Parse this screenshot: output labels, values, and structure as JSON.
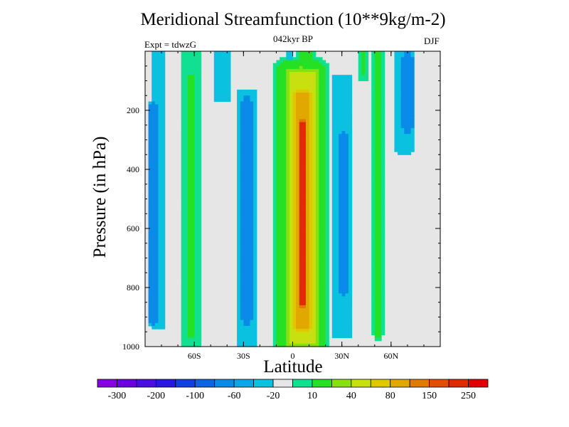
{
  "chart_data": {
    "type": "heatmap",
    "title": "Meridional Streamfunction (10**9kg/m-2)",
    "subtitle": "042kyr BP",
    "left_label": "Expt = tdwzG",
    "right_label": "DJF",
    "xlabel": "Latitude",
    "ylabel": "Pressure (in hPa)",
    "xlim": [
      -90,
      90
    ],
    "ylim": [
      0,
      1000
    ],
    "y_inverted": true,
    "x_ticks": [
      {
        "value": -60,
        "label": "60S"
      },
      {
        "value": -30,
        "label": "30S"
      },
      {
        "value": 0,
        "label": "0"
      },
      {
        "value": 30,
        "label": "30N"
      },
      {
        "value": 60,
        "label": "60N"
      }
    ],
    "y_ticks": [
      200,
      400,
      600,
      800,
      1000
    ],
    "colorbar": {
      "colors": [
        "#8800e0",
        "#6a00e0",
        "#4b0ee0",
        "#2a18e0",
        "#1040e0",
        "#0a66e0",
        "#0a8be8",
        "#0aa6e8",
        "#0ac2e0",
        "#e6e6e6",
        "#10e090",
        "#25e025",
        "#88e010",
        "#c8e010",
        "#e0c800",
        "#e0a800",
        "#e07a00",
        "#e05000",
        "#e02a00",
        "#e00000"
      ],
      "labels": [
        "-300",
        "-200",
        "-100",
        "-60",
        "-20",
        "10",
        "40",
        "80",
        "150",
        "250"
      ],
      "background_color": "#e6e6e6"
    },
    "bands": [
      {
        "cx": -82,
        "sx": 4,
        "ymin": 20,
        "ymax": 920,
        "value": -20
      },
      {
        "cx": -85,
        "sx": 2.5,
        "ymin": 200,
        "ymax": 900,
        "value": -60
      },
      {
        "cx": -62,
        "sx": 6,
        "ymin": 0,
        "ymax": 1000,
        "value": 20
      },
      {
        "cx": -62,
        "sx": 2,
        "ymin": 100,
        "ymax": 950,
        "value": 40
      },
      {
        "cx": -43,
        "sx": 5,
        "ymin": 0,
        "ymax": 150,
        "value": -20
      },
      {
        "cx": -28,
        "sx": 6,
        "ymin": 150,
        "ymax": 980,
        "value": -20
      },
      {
        "cx": -28,
        "sx": 2.5,
        "ymin": 180,
        "ymax": 900,
        "value": -60
      },
      {
        "cx": 5,
        "sx": 13,
        "ymin": 50,
        "ymax": 1000,
        "value": 40
      },
      {
        "cx": 6,
        "sx": 9,
        "ymin": 80,
        "ymax": 980,
        "value": 100
      },
      {
        "cx": 6,
        "sx": 5.5,
        "ymin": 150,
        "ymax": 930,
        "value": 180
      },
      {
        "cx": 6,
        "sx": 3,
        "ymin": 250,
        "ymax": 850,
        "value": 300
      },
      {
        "cx": 8,
        "sx": 4,
        "ymin": 0,
        "ymax": 150,
        "value": 40
      },
      {
        "cx": 30,
        "sx": 6,
        "ymin": 100,
        "ymax": 950,
        "value": -20
      },
      {
        "cx": 31,
        "sx": 2.5,
        "ymin": 300,
        "ymax": 800,
        "value": -60
      },
      {
        "cx": 52,
        "sx": 3,
        "ymin": 0,
        "ymax": 950,
        "value": 20
      },
      {
        "cx": 52,
        "sx": 1.5,
        "ymin": 0,
        "ymax": 950,
        "value": 40
      },
      {
        "cx": 68,
        "sx": 5,
        "ymin": 0,
        "ymax": 330,
        "value": -20
      },
      {
        "cx": 70,
        "sx": 2.5,
        "ymin": 30,
        "ymax": 250,
        "value": -60
      },
      {
        "cx": 43,
        "sx": 3,
        "ymin": 0,
        "ymax": 80,
        "value": 20
      },
      {
        "cx": -2,
        "sx": 2,
        "ymin": 0,
        "ymax": 60,
        "value": -20
      }
    ]
  }
}
